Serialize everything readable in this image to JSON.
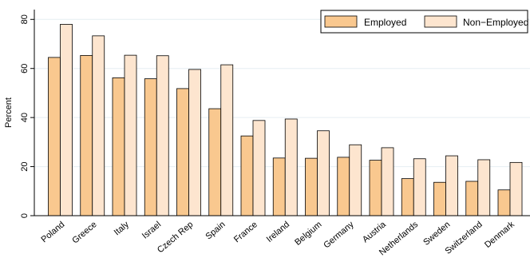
{
  "chart_data": {
    "type": "bar",
    "ylabel": "Percent",
    "ylim": [
      0,
      84
    ],
    "yticks": [
      0,
      20,
      40,
      60,
      80
    ],
    "grid": true,
    "legend_position": "top-right",
    "categories": [
      "Poland",
      "Greece",
      "Italy",
      "Israel",
      "Czech Rep",
      "Spain",
      "France",
      "Ireland",
      "Belgium",
      "Germany",
      "Austria",
      "Netherlands",
      "Sweden",
      "Switzerland",
      "Denmark"
    ],
    "series": [
      {
        "name": "Employed",
        "color": "#F9C88F",
        "values": [
          64.5,
          65.3,
          56.2,
          55.8,
          51.8,
          43.6,
          32.5,
          23.5,
          23.4,
          23.8,
          22.6,
          15.1,
          13.6,
          14.0,
          10.5
        ]
      },
      {
        "name": "Non−Employed",
        "color": "#FDE5CF",
        "values": [
          78.0,
          73.3,
          65.4,
          65.2,
          59.6,
          61.5,
          38.8,
          39.4,
          34.6,
          28.9,
          27.7,
          23.2,
          24.4,
          22.8,
          21.7
        ]
      }
    ]
  }
}
